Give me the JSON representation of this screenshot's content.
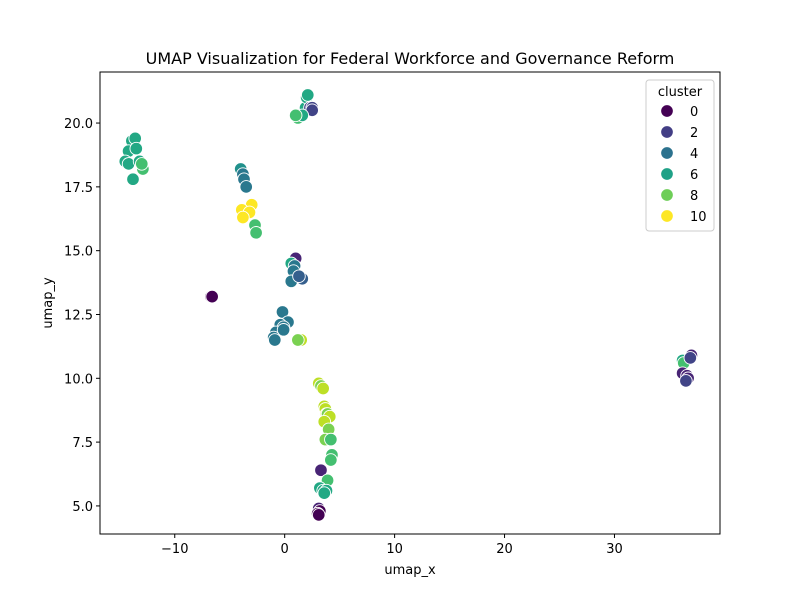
{
  "chart_data": {
    "type": "scatter",
    "title": "UMAP Visualization for Federal Workforce and Governance Reform",
    "xlabel": "umap_x",
    "ylabel": "umap_y",
    "xlim": [
      -16.8,
      39.6
    ],
    "ylim": [
      3.9,
      22.0
    ],
    "xticks": [
      -10,
      0,
      10,
      20,
      30
    ],
    "yticks": [
      5.0,
      7.5,
      10.0,
      12.5,
      15.0,
      17.5,
      20.0
    ],
    "ytick_labels": [
      "5.0",
      "7.5",
      "10.0",
      "12.5",
      "15.0",
      "17.5",
      "20.0"
    ],
    "grid": false,
    "legend": {
      "title": "cluster",
      "placement": "top-right",
      "entries": [
        {
          "label": "0",
          "color": "#440154"
        },
        {
          "label": "2",
          "color": "#433e85"
        },
        {
          "label": "4",
          "color": "#2c728e"
        },
        {
          "label": "6",
          "color": "#1fa187"
        },
        {
          "label": "8",
          "color": "#6ece58"
        },
        {
          "label": "10",
          "color": "#fde725"
        }
      ]
    },
    "cluster_colors": {
      "0": "#440154",
      "1": "#482475",
      "2": "#414487",
      "3": "#355f8d",
      "4": "#2a788e",
      "5": "#21918c",
      "6": "#22a884",
      "7": "#44bf70",
      "8": "#7ad151",
      "9": "#bddf26",
      "10": "#fde725"
    },
    "points": [
      {
        "x": -13.9,
        "y": 19.3,
        "c": 6
      },
      {
        "x": -13.6,
        "y": 19.4,
        "c": 6
      },
      {
        "x": -14.2,
        "y": 18.9,
        "c": 6
      },
      {
        "x": -13.5,
        "y": 19.0,
        "c": 6
      },
      {
        "x": -14.5,
        "y": 18.5,
        "c": 6
      },
      {
        "x": -14.2,
        "y": 18.4,
        "c": 6
      },
      {
        "x": -13.2,
        "y": 18.5,
        "c": 6
      },
      {
        "x": -12.9,
        "y": 18.2,
        "c": 7
      },
      {
        "x": -13.8,
        "y": 17.8,
        "c": 6
      },
      {
        "x": -13.0,
        "y": 18.4,
        "c": 7
      },
      {
        "x": -4.0,
        "y": 18.2,
        "c": 5
      },
      {
        "x": -3.8,
        "y": 18.0,
        "c": 4
      },
      {
        "x": -3.7,
        "y": 17.8,
        "c": 4
      },
      {
        "x": -3.5,
        "y": 17.5,
        "c": 4
      },
      {
        "x": -3.0,
        "y": 16.8,
        "c": 10
      },
      {
        "x": -3.9,
        "y": 16.6,
        "c": 10
      },
      {
        "x": -3.2,
        "y": 16.5,
        "c": 10
      },
      {
        "x": -3.8,
        "y": 16.3,
        "c": 10
      },
      {
        "x": -2.7,
        "y": 16.0,
        "c": 7
      },
      {
        "x": -2.6,
        "y": 15.7,
        "c": 7
      },
      {
        "x": 1.7,
        "y": 20.4,
        "c": 6
      },
      {
        "x": 1.9,
        "y": 20.6,
        "c": 6
      },
      {
        "x": 2.0,
        "y": 21.0,
        "c": 6
      },
      {
        "x": 2.1,
        "y": 21.1,
        "c": 6
      },
      {
        "x": 2.3,
        "y": 20.6,
        "c": 2
      },
      {
        "x": 2.5,
        "y": 20.6,
        "c": 2
      },
      {
        "x": 2.5,
        "y": 20.5,
        "c": 2
      },
      {
        "x": 1.2,
        "y": 20.2,
        "c": 7
      },
      {
        "x": 1.6,
        "y": 20.3,
        "c": 6
      },
      {
        "x": 1.0,
        "y": 20.3,
        "c": 7
      },
      {
        "x": -6.7,
        "y": 13.2,
        "c": 0
      },
      {
        "x": -6.6,
        "y": 13.2,
        "c": 0
      },
      {
        "x": 1.0,
        "y": 14.7,
        "c": 1
      },
      {
        "x": 0.6,
        "y": 14.5,
        "c": 6
      },
      {
        "x": 0.9,
        "y": 14.4,
        "c": 4
      },
      {
        "x": 0.8,
        "y": 14.2,
        "c": 4
      },
      {
        "x": 1.6,
        "y": 13.9,
        "c": 3
      },
      {
        "x": 0.6,
        "y": 13.8,
        "c": 4
      },
      {
        "x": 1.3,
        "y": 14.0,
        "c": 3
      },
      {
        "x": -0.2,
        "y": 12.6,
        "c": 4
      },
      {
        "x": 0.3,
        "y": 12.2,
        "c": 4
      },
      {
        "x": -0.4,
        "y": 12.1,
        "c": 4
      },
      {
        "x": -0.1,
        "y": 12.0,
        "c": 4
      },
      {
        "x": -0.8,
        "y": 11.8,
        "c": 4
      },
      {
        "x": -1.0,
        "y": 11.6,
        "c": 4
      },
      {
        "x": -0.9,
        "y": 11.5,
        "c": 4
      },
      {
        "x": -0.1,
        "y": 11.9,
        "c": 4
      },
      {
        "x": 1.5,
        "y": 11.5,
        "c": 9
      },
      {
        "x": 1.2,
        "y": 11.5,
        "c": 8
      },
      {
        "x": 3.1,
        "y": 9.8,
        "c": 9
      },
      {
        "x": 3.3,
        "y": 9.7,
        "c": 8
      },
      {
        "x": 3.5,
        "y": 9.6,
        "c": 9
      },
      {
        "x": 3.6,
        "y": 8.9,
        "c": 9
      },
      {
        "x": 3.7,
        "y": 8.8,
        "c": 9
      },
      {
        "x": 3.8,
        "y": 8.6,
        "c": 10
      },
      {
        "x": 3.9,
        "y": 8.6,
        "c": 8
      },
      {
        "x": 4.1,
        "y": 8.5,
        "c": 9
      },
      {
        "x": 3.6,
        "y": 8.3,
        "c": 9
      },
      {
        "x": 4.0,
        "y": 8.0,
        "c": 8
      },
      {
        "x": 3.7,
        "y": 7.6,
        "c": 8
      },
      {
        "x": 4.2,
        "y": 7.6,
        "c": 7
      },
      {
        "x": 4.3,
        "y": 7.0,
        "c": 7
      },
      {
        "x": 4.2,
        "y": 6.8,
        "c": 7
      },
      {
        "x": 3.3,
        "y": 6.4,
        "c": 1
      },
      {
        "x": 3.9,
        "y": 6.0,
        "c": 7
      },
      {
        "x": 3.2,
        "y": 5.7,
        "c": 6
      },
      {
        "x": 3.5,
        "y": 5.6,
        "c": 6
      },
      {
        "x": 3.8,
        "y": 5.6,
        "c": 6
      },
      {
        "x": 3.6,
        "y": 5.5,
        "c": 6
      },
      {
        "x": 3.1,
        "y": 4.9,
        "c": 1
      },
      {
        "x": 3.2,
        "y": 4.8,
        "c": 0
      },
      {
        "x": 3.0,
        "y": 4.7,
        "c": 0
      },
      {
        "x": 3.1,
        "y": 4.65,
        "c": 0
      },
      {
        "x": 36.2,
        "y": 10.7,
        "c": 6
      },
      {
        "x": 36.3,
        "y": 10.6,
        "c": 7
      },
      {
        "x": 37.0,
        "y": 10.9,
        "c": 1
      },
      {
        "x": 36.9,
        "y": 10.8,
        "c": 2
      },
      {
        "x": 36.2,
        "y": 10.2,
        "c": 1
      },
      {
        "x": 36.6,
        "y": 10.1,
        "c": 1
      },
      {
        "x": 36.7,
        "y": 10.0,
        "c": 1
      },
      {
        "x": 36.5,
        "y": 9.9,
        "c": 2
      }
    ]
  }
}
